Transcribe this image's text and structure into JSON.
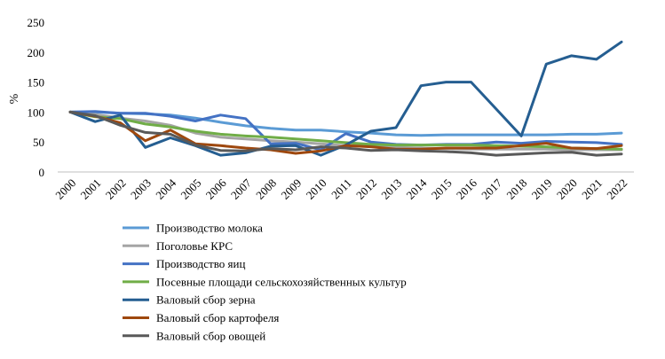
{
  "chart_data": {
    "type": "line",
    "title": "",
    "xlabel": "",
    "ylabel": "%",
    "ylim": [
      0,
      250
    ],
    "yticks": [
      0,
      50,
      100,
      150,
      200,
      250
    ],
    "grid": false,
    "legend_position": "bottom",
    "categories": [
      "2000",
      "2001",
      "2002",
      "2003",
      "2004",
      "2005",
      "2006",
      "2007",
      "2008",
      "2009",
      "2010",
      "2011",
      "2012",
      "2013",
      "2014",
      "2015",
      "2016",
      "2017",
      "2018",
      "2019",
      "2020",
      "2021",
      "2022"
    ],
    "series": [
      {
        "name": "Производство молока",
        "color": "#5b9bd5",
        "values": [
          100,
          100,
          98,
          97,
          95,
          90,
          83,
          77,
          73,
          70,
          70,
          67,
          65,
          62,
          61,
          62,
          62,
          62,
          62,
          62,
          63,
          63,
          65
        ]
      },
      {
        "name": "Поголовье КРС",
        "color": "#a5a5a5",
        "values": [
          100,
          96,
          90,
          85,
          78,
          65,
          58,
          55,
          52,
          50,
          47,
          44,
          43,
          41,
          40,
          39,
          38,
          38,
          38,
          38,
          37,
          37,
          37
        ]
      },
      {
        "name": "Производство яиц",
        "color": "#4472c4",
        "values": [
          100,
          101,
          98,
          98,
          93,
          85,
          95,
          89,
          47,
          48,
          37,
          64,
          50,
          46,
          45,
          46,
          46,
          50,
          48,
          51,
          50,
          49,
          46
        ]
      },
      {
        "name": "Посевные площади сельскохозяйственных культур",
        "color": "#70ad47",
        "values": [
          100,
          92,
          89,
          80,
          75,
          68,
          63,
          60,
          58,
          55,
          52,
          49,
          46,
          45,
          45,
          45,
          45,
          44,
          43,
          42,
          40,
          39,
          38
        ]
      },
      {
        "name": "Валовый сбор зерна",
        "color": "#255e91",
        "values": [
          100,
          84,
          95,
          41,
          57,
          44,
          28,
          32,
          43,
          44,
          28,
          45,
          68,
          74,
          144,
          150,
          150,
          105,
          60,
          180,
          194,
          188,
          217
        ]
      },
      {
        "name": "Валовый сбор картофеля",
        "color": "#9e480e",
        "values": [
          100,
          93,
          82,
          52,
          70,
          47,
          44,
          40,
          37,
          31,
          35,
          44,
          42,
          38,
          38,
          40,
          40,
          40,
          44,
          48,
          40,
          39,
          44
        ]
      },
      {
        "name": "Валовый сбор овощей",
        "color": "#595959",
        "values": [
          100,
          94,
          78,
          66,
          63,
          45,
          36,
          35,
          39,
          37,
          42,
          40,
          36,
          37,
          35,
          34,
          32,
          28,
          30,
          32,
          33,
          28,
          30
        ]
      }
    ]
  }
}
